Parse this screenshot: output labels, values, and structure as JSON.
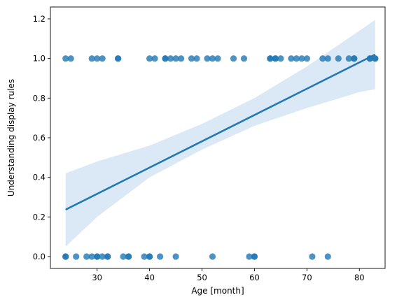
{
  "chart_data": {
    "type": "scatter",
    "title": "",
    "xlabel": "Age [month]",
    "ylabel": "Understanding display rules",
    "xlim": [
      21.1,
      84.9
    ],
    "ylim": [
      -0.06,
      1.26
    ],
    "xticks": [
      30,
      40,
      50,
      60,
      70,
      80
    ],
    "yticks": [
      0.0,
      0.2,
      0.4,
      0.6,
      0.8,
      1.0,
      1.2
    ],
    "grid": false,
    "legend": "none",
    "colors": {
      "points": "#1f77b4",
      "line": "#1f77b4",
      "band": "#cfe0f1"
    },
    "points": {
      "x": [
        24,
        25,
        29,
        30,
        31,
        34,
        34,
        40,
        41,
        43,
        43,
        44,
        45,
        46,
        48,
        49,
        51,
        52,
        53,
        56,
        58,
        63,
        63,
        64,
        64,
        65,
        67,
        68,
        69,
        70,
        73,
        74,
        76,
        78,
        79,
        79,
        82,
        82,
        83,
        83,
        24,
        24,
        26,
        28,
        29,
        30,
        30,
        31,
        32,
        32,
        35,
        36,
        36,
        39,
        40,
        40,
        42,
        45,
        52,
        59,
        60,
        60,
        71,
        74
      ],
      "y": [
        1,
        1,
        1,
        1,
        1,
        1,
        1,
        1,
        1,
        1,
        1,
        1,
        1,
        1,
        1,
        1,
        1,
        1,
        1,
        1,
        1,
        1,
        1,
        1,
        1,
        1,
        1,
        1,
        1,
        1,
        1,
        1,
        1,
        1,
        1,
        1,
        1,
        1,
        1,
        1,
        0,
        0,
        0,
        0,
        0,
        0,
        0,
        0,
        0,
        0,
        0,
        0,
        0,
        0,
        0,
        0,
        0,
        0,
        0,
        0,
        0,
        0,
        0,
        0
      ]
    },
    "regression": {
      "x": [
        24,
        83
      ],
      "y": [
        0.237,
        1.02
      ]
    },
    "confidence_band": {
      "x": [
        24,
        30,
        40,
        50,
        60,
        70,
        80,
        83
      ],
      "lower": [
        0.05,
        0.2,
        0.4,
        0.54,
        0.66,
        0.75,
        0.83,
        0.845
      ],
      "upper": [
        0.42,
        0.48,
        0.56,
        0.67,
        0.8,
        0.96,
        1.14,
        1.195
      ]
    }
  }
}
